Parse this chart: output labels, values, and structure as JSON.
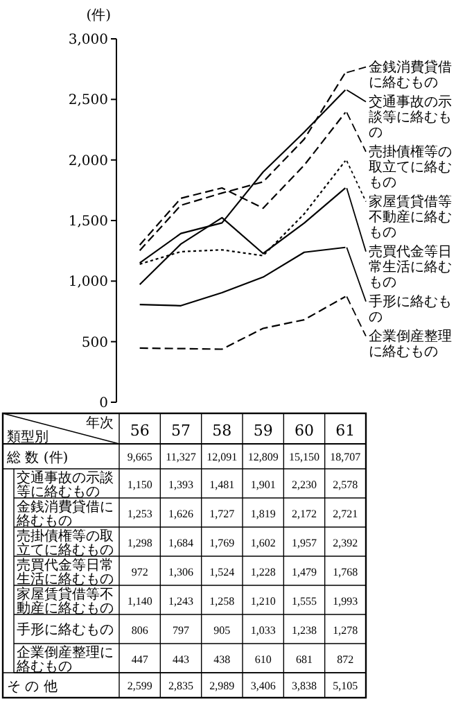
{
  "chart_data": {
    "type": "line",
    "ylabel": "(件)",
    "categories": [
      "56",
      "57",
      "58",
      "59",
      "60",
      "61"
    ],
    "ylim": [
      0,
      3000
    ],
    "legend": "right",
    "yticks": [
      0,
      500,
      {
        "value": 1000,
        "label": "1,000"
      },
      {
        "value": 1500,
        "label": "1,500"
      },
      {
        "value": 2000,
        "label": "2,000"
      },
      {
        "value": 2500,
        "label": "2,500"
      },
      {
        "value": 3000,
        "label": "3,000"
      }
    ],
    "series": [
      {
        "name": "交通事故の示談等に絡むもの",
        "color": "#000000",
        "line_style": "solid",
        "values": [
          1150,
          1393,
          1481,
          1901,
          2230,
          2578
        ],
        "value_labels": [
          "1,150",
          "1,393",
          "1,481",
          "1,901",
          "2,230",
          "2,578"
        ]
      },
      {
        "name": "金銭消費貸借に絡むもの",
        "color": "#000000",
        "line_style": "dashed",
        "values": [
          1253,
          1626,
          1727,
          1819,
          2172,
          2721
        ],
        "value_labels": [
          "1,253",
          "1,626",
          "1,727",
          "1,819",
          "2,172",
          "2,721"
        ]
      },
      {
        "name": "売掛債権等の取立てに絡むもの",
        "color": "#000000",
        "line_style": "dashed",
        "values": [
          1298,
          1684,
          1769,
          1602,
          1957,
          2392
        ],
        "value_labels": [
          "1,298",
          "1,684",
          "1,769",
          "1,602",
          "1,957",
          "2,392"
        ]
      },
      {
        "name": "売買代金等日常生活に絡むもの",
        "color": "#000000",
        "line_style": "solid",
        "values": [
          972,
          1306,
          1524,
          1228,
          1479,
          1768
        ],
        "value_labels": [
          "972",
          "1,306",
          "1,524",
          "1,228",
          "1,479",
          "1,768"
        ]
      },
      {
        "name": "家屋賃貸借等不動産に絡むもの",
        "color": "#000000",
        "line_style": "dotted",
        "values": [
          1140,
          1243,
          1258,
          1210,
          1555,
          1993
        ],
        "value_labels": [
          "1,140",
          "1,243",
          "1,258",
          "1,210",
          "1,555",
          "1,993"
        ]
      },
      {
        "name": "手形に絡むもの",
        "color": "#000000",
        "line_style": "solid",
        "values": [
          806,
          797,
          905,
          1033,
          1238,
          1278
        ],
        "value_labels": [
          "806",
          "797",
          "905",
          "1,033",
          "1,238",
          "1,278"
        ]
      },
      {
        "name": "企業倒産整理に絡むもの",
        "color": "#000000",
        "line_style": "dashed",
        "values": [
          447,
          443,
          438,
          610,
          681,
          872
        ],
        "value_labels": [
          "447",
          "443",
          "438",
          "610",
          "681",
          "872"
        ]
      }
    ],
    "annotations": [
      "年次",
      "類型別",
      "総 数 (件)",
      "9,665",
      "11,327",
      "12,091",
      "12,809",
      "15,150",
      "18,707",
      "そ の 他",
      "2,599",
      "2,835",
      "2,989",
      "3,406",
      "3,838",
      "5,105"
    ]
  }
}
